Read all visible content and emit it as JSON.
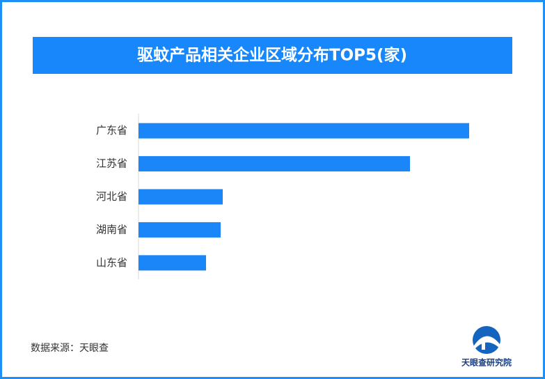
{
  "chart_data": {
    "type": "bar",
    "orientation": "horizontal",
    "title": "驱蚊产品相关企业区域分布TOP5(家)",
    "categories": [
      "广东省",
      "江苏省",
      "河北省",
      "湖南省",
      "山东省"
    ],
    "values": [
      475,
      390,
      121,
      118,
      97
    ],
    "color": "#1a86f8",
    "xlim": [
      0,
      500
    ],
    "source": "数据来源：天眼查",
    "logo_text": "天眼查研究院"
  }
}
